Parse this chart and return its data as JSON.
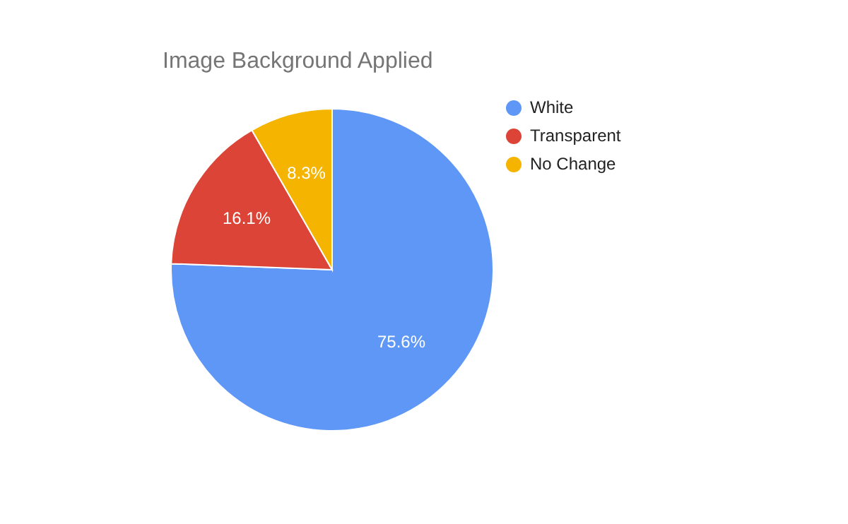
{
  "chart_data": {
    "type": "pie",
    "title": "Image Background Applied",
    "categories": [
      "White",
      "Transparent",
      "No Change"
    ],
    "values": [
      75.6,
      16.1,
      8.3
    ],
    "colors": [
      "#5e97f6",
      "#db4437",
      "#f4b400"
    ],
    "value_labels": [
      "75.6%",
      "16.1%",
      "8.3%"
    ],
    "legend": "top right"
  }
}
